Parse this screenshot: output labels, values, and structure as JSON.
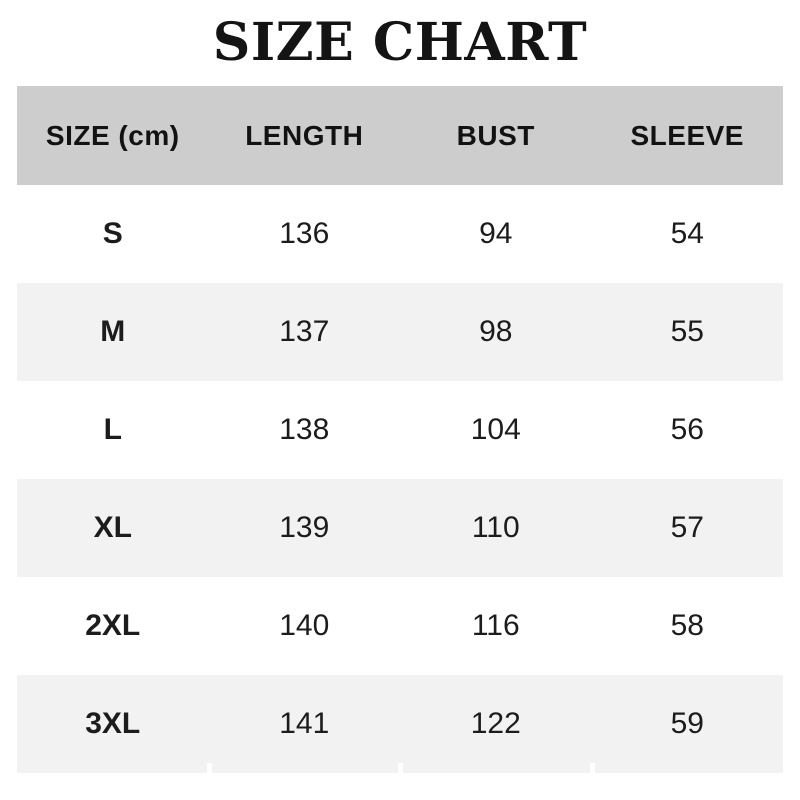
{
  "title": "SIZE CHART",
  "colors": {
    "header_bg": "#cdcdcd",
    "alt_row_bg": "#f2f2f2",
    "row_bg": "#ffffff",
    "text": "#1a1a1a"
  },
  "chart_data": {
    "type": "table",
    "title": "SIZE CHART",
    "unit": "cm",
    "columns": [
      "SIZE (cm)",
      "LENGTH",
      "BUST",
      "SLEEVE"
    ],
    "rows": [
      [
        "S",
        136,
        94,
        54
      ],
      [
        "M",
        137,
        98,
        55
      ],
      [
        "L",
        138,
        104,
        56
      ],
      [
        "XL",
        139,
        110,
        57
      ],
      [
        "2XL",
        140,
        116,
        58
      ],
      [
        "3XL",
        141,
        122,
        59
      ]
    ],
    "layout_hints": {
      "alternating_rows": true,
      "gridlines": false,
      "header_background": "#cdcdcd",
      "alternate_background": "#f2f2f2"
    }
  }
}
